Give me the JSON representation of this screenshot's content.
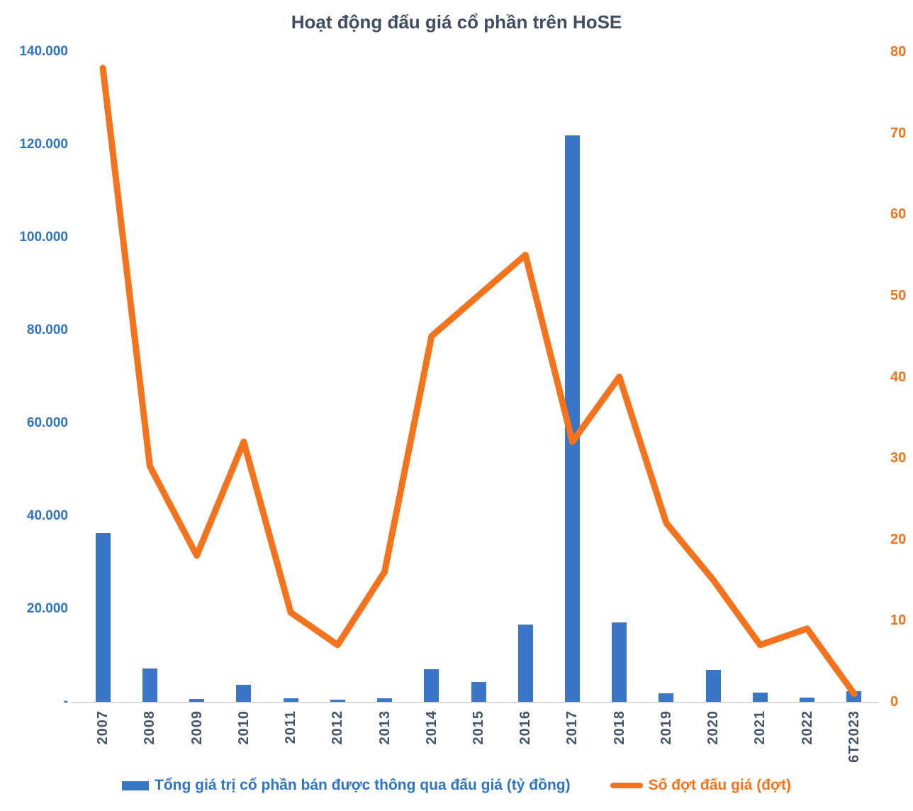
{
  "title": "Hoạt động đấu giá cổ phần trên HoSE",
  "chart_data": {
    "type": "combo-bar-line",
    "categories": [
      "2007",
      "2008",
      "2009",
      "2010",
      "2011",
      "2012",
      "2013",
      "2014",
      "2015",
      "2016",
      "2017",
      "2018",
      "2019",
      "2020",
      "2021",
      "2022",
      "6T2023"
    ],
    "series": [
      {
        "name": "Tổng giá trị cổ phần bán được thông qua đấu giá (tỷ đồng)",
        "type": "bar",
        "axis": "left",
        "color": "#3a76c8",
        "values": [
          36400,
          7200,
          600,
          3600,
          800,
          500,
          800,
          7000,
          4300,
          16600,
          122000,
          17100,
          1800,
          6900,
          2000,
          900,
          2300
        ]
      },
      {
        "name": "Số đợt đấu giá (đợt)",
        "type": "line",
        "axis": "right",
        "color": "#f5731d",
        "values": [
          78,
          29,
          18,
          32,
          11,
          7,
          16,
          45,
          50,
          55,
          32,
          40,
          22,
          15,
          7,
          9,
          1
        ]
      }
    ],
    "left_axis": {
      "min": 0,
      "max": 140000,
      "step": 20000,
      "tick_labels": [
        "-",
        "20.000",
        "40.000",
        "60.000",
        "80.000",
        "100.000",
        "120.000",
        "140.000"
      ],
      "label_color": "#2e74c4"
    },
    "right_axis": {
      "min": 0,
      "max": 80,
      "step": 10,
      "tick_labels": [
        "0",
        "10",
        "20",
        "30",
        "40",
        "50",
        "60",
        "70",
        "80"
      ],
      "label_color": "#f0731e"
    },
    "category_label_color": "#44546a",
    "title_color": "#3f4e63",
    "axis_line_color": "#d9d9d9",
    "grid": false,
    "legend_position": "bottom"
  }
}
